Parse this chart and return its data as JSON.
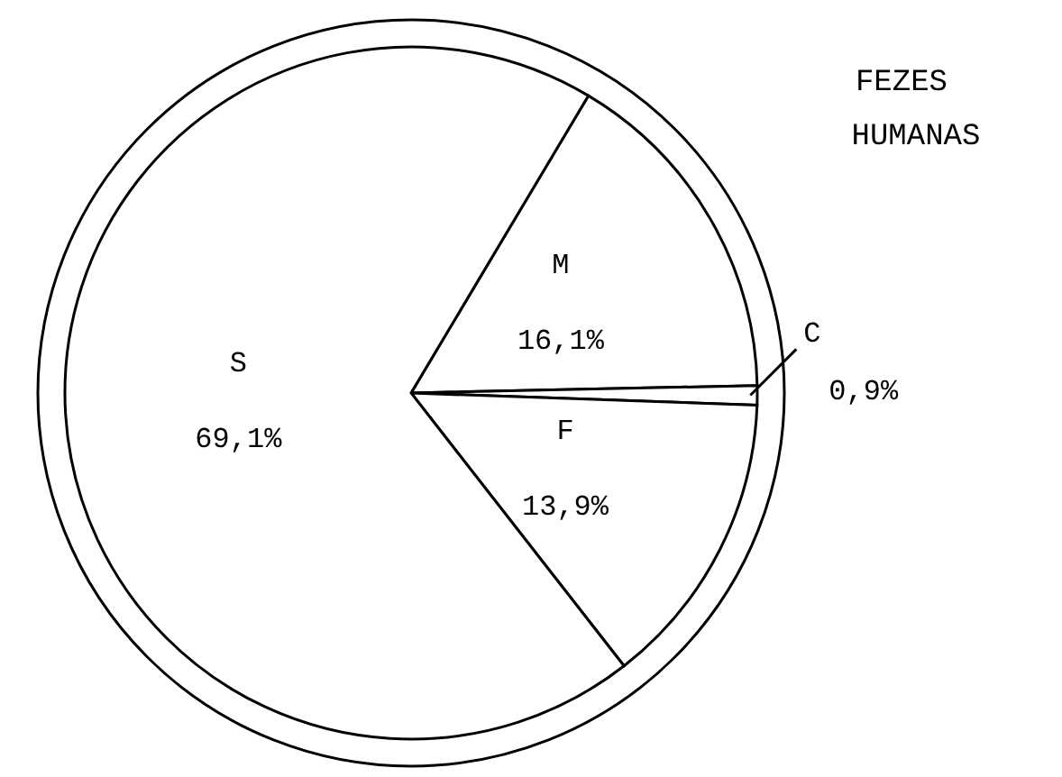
{
  "chart_data": {
    "type": "pie",
    "title": "FEZES HUMANAS",
    "categories": [
      "M",
      "C",
      "F",
      "S"
    ],
    "values": [
      16.1,
      0.9,
      13.9,
      69.1
    ],
    "value_labels": [
      "16,1%",
      "0,9%",
      "13,9%",
      "69,1%"
    ],
    "colors": [
      "#ffffff",
      "#ffffff",
      "#ffffff",
      "#ffffff"
    ]
  }
}
